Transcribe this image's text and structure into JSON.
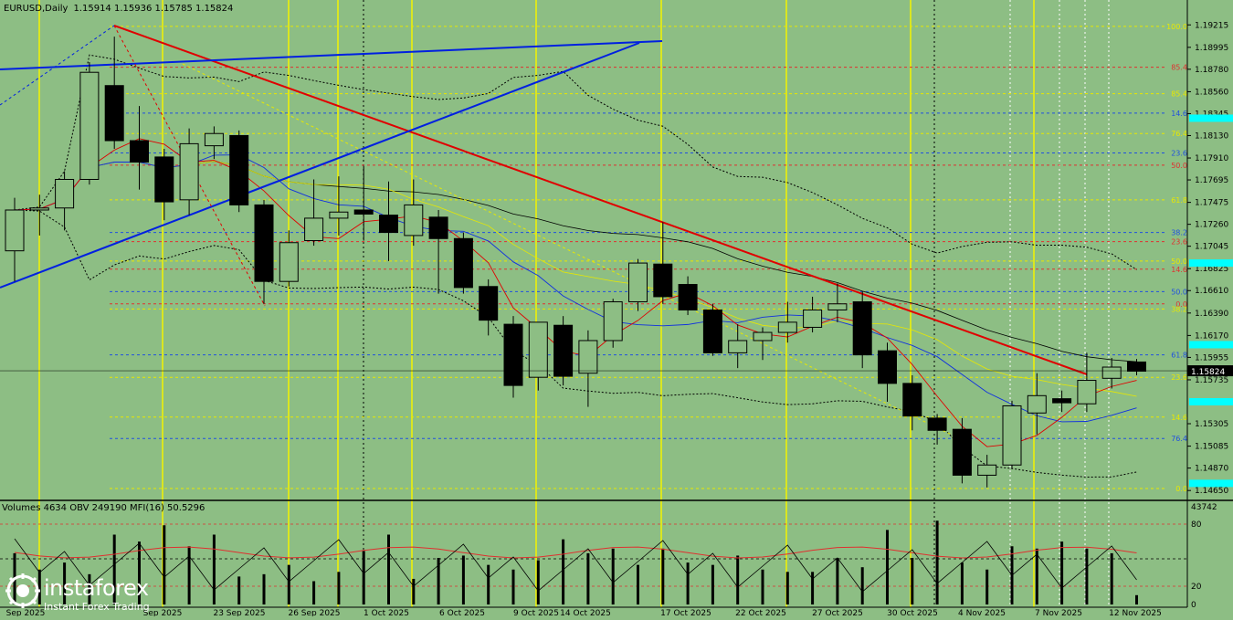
{
  "header": {
    "symbol": "EURUSD,Daily",
    "ohlc": "1.15914 1.15936 1.15785 1.15824"
  },
  "price_axis": {
    "labels": [
      "1.19215",
      "1.18995",
      "1.18780",
      "1.18560",
      "1.18345",
      "1.18130",
      "1.17910",
      "1.17695",
      "1.17475",
      "1.17260",
      "1.17045",
      "1.16825",
      "1.16610",
      "1.16390",
      "1.16170",
      "1.15955",
      "1.15735",
      "1.15305",
      "1.15085",
      "1.14870",
      "1.14650"
    ],
    "current_price": "1.15824"
  },
  "fib_labels": [
    {
      "text": "100.0",
      "price": 1.192,
      "color": "#e8e800"
    },
    {
      "text": "85.4",
      "price": 1.188,
      "color": "#e03030"
    },
    {
      "text": "85.4",
      "price": 1.1854,
      "color": "#e8e800"
    },
    {
      "text": "14.6",
      "price": 1.1835,
      "color": "#2050e0"
    },
    {
      "text": "76.4",
      "price": 1.1815,
      "color": "#e8e800"
    },
    {
      "text": "23.6",
      "price": 1.1796,
      "color": "#2050e0"
    },
    {
      "text": "50.0",
      "price": 1.1784,
      "color": "#e03030"
    },
    {
      "text": "61.8",
      "price": 1.175,
      "color": "#e8e800"
    },
    {
      "text": "38.2",
      "price": 1.1718,
      "color": "#2050e0"
    },
    {
      "text": "23.6",
      "price": 1.1709,
      "color": "#e03030"
    },
    {
      "text": "50.0",
      "price": 1.169,
      "color": "#e8e800"
    },
    {
      "text": "14.6",
      "price": 1.1682,
      "color": "#e03030"
    },
    {
      "text": "50.0",
      "price": 1.166,
      "color": "#2050e0"
    },
    {
      "text": "0.0",
      "price": 1.1648,
      "color": "#e03030"
    },
    {
      "text": "38.2",
      "price": 1.1643,
      "color": "#e8e800"
    },
    {
      "text": "61.8",
      "price": 1.1598,
      "color": "#2050e0"
    },
    {
      "text": "23.6",
      "price": 1.1576,
      "color": "#e8e800"
    },
    {
      "text": "14.6",
      "price": 1.1537,
      "color": "#e8e800"
    },
    {
      "text": "76.4",
      "price": 1.1516,
      "color": "#2050e0"
    },
    {
      "text": "0.0",
      "price": 1.1467,
      "color": "#e8e800"
    }
  ],
  "indicator": {
    "title": "Volumes 4634  OBV 249190  MFI(16) 50.5296",
    "axis_labels": [
      "43742",
      "80",
      "20",
      "0"
    ]
  },
  "time_axis": {
    "labels": [
      "Sep 2025",
      "Sep 2025",
      "23 Sep 2025",
      "26 Sep 2025",
      "1 Oct 2025",
      "6 Oct 2025",
      "9 Oct 2025",
      "14 Oct 2025",
      "17 Oct 2025",
      "22 Oct 2025",
      "27 Oct 2025",
      "30 Oct 2025",
      "4 Nov 2025",
      "7 Nov 2025",
      "12 Nov 2025"
    ]
  },
  "watermark": {
    "brand": "instaforex",
    "tagline": "Instant Forex Trading"
  },
  "colors": {
    "background": "#8dbe84",
    "bull_candle": "#8dbe84",
    "bear_candle": "#000000",
    "trend_red": "#e00000",
    "trend_blue": "#0020e0",
    "highlight_cyan": "#00ffff"
  },
  "chart_data": {
    "type": "candlestick",
    "title": "EURUSD,Daily",
    "y_range": [
      1.1458,
      1.1928
    ],
    "candles": [
      {
        "o": 1.17,
        "h": 1.1752,
        "l": 1.167,
        "c": 1.174
      },
      {
        "o": 1.174,
        "h": 1.1755,
        "l": 1.1715,
        "c": 1.1742
      },
      {
        "o": 1.1742,
        "h": 1.1778,
        "l": 1.172,
        "c": 1.177
      },
      {
        "o": 1.177,
        "h": 1.1885,
        "l": 1.1765,
        "c": 1.1875
      },
      {
        "o": 1.1862,
        "h": 1.191,
        "l": 1.18,
        "c": 1.1808
      },
      {
        "o": 1.1808,
        "h": 1.1842,
        "l": 1.176,
        "c": 1.1787
      },
      {
        "o": 1.1792,
        "h": 1.18,
        "l": 1.173,
        "c": 1.1748
      },
      {
        "o": 1.175,
        "h": 1.182,
        "l": 1.1735,
        "c": 1.1805
      },
      {
        "o": 1.1803,
        "h": 1.1822,
        "l": 1.179,
        "c": 1.1815
      },
      {
        "o": 1.1813,
        "h": 1.1818,
        "l": 1.1738,
        "c": 1.1745
      },
      {
        "o": 1.1745,
        "h": 1.175,
        "l": 1.1648,
        "c": 1.167
      },
      {
        "o": 1.167,
        "h": 1.172,
        "l": 1.1665,
        "c": 1.1708
      },
      {
        "o": 1.171,
        "h": 1.177,
        "l": 1.1705,
        "c": 1.1732
      },
      {
        "o": 1.1732,
        "h": 1.1773,
        "l": 1.1715,
        "c": 1.1738
      },
      {
        "o": 1.174,
        "h": 1.1783,
        "l": 1.171,
        "c": 1.1736
      },
      {
        "o": 1.1735,
        "h": 1.1768,
        "l": 1.169,
        "c": 1.1718
      },
      {
        "o": 1.1715,
        "h": 1.177,
        "l": 1.1705,
        "c": 1.1745
      },
      {
        "o": 1.1733,
        "h": 1.174,
        "l": 1.1658,
        "c": 1.1712
      },
      {
        "o": 1.1712,
        "h": 1.1718,
        "l": 1.1658,
        "c": 1.1664
      },
      {
        "o": 1.1665,
        "h": 1.1672,
        "l": 1.1617,
        "c": 1.1632
      },
      {
        "o": 1.1628,
        "h": 1.1636,
        "l": 1.1556,
        "c": 1.1568
      },
      {
        "o": 1.1576,
        "h": 1.163,
        "l": 1.1563,
        "c": 1.163
      },
      {
        "o": 1.1627,
        "h": 1.1636,
        "l": 1.1568,
        "c": 1.1577
      },
      {
        "o": 1.158,
        "h": 1.1622,
        "l": 1.1547,
        "c": 1.1612
      },
      {
        "o": 1.1612,
        "h": 1.1653,
        "l": 1.1605,
        "c": 1.165
      },
      {
        "o": 1.165,
        "h": 1.1692,
        "l": 1.1641,
        "c": 1.1688
      },
      {
        "o": 1.1687,
        "h": 1.1728,
        "l": 1.1648,
        "c": 1.1655
      },
      {
        "o": 1.1667,
        "h": 1.1675,
        "l": 1.1637,
        "c": 1.1642
      },
      {
        "o": 1.1642,
        "h": 1.1648,
        "l": 1.1597,
        "c": 1.16
      },
      {
        "o": 1.16,
        "h": 1.1628,
        "l": 1.1585,
        "c": 1.1612
      },
      {
        "o": 1.1612,
        "h": 1.1625,
        "l": 1.1593,
        "c": 1.162
      },
      {
        "o": 1.162,
        "h": 1.165,
        "l": 1.161,
        "c": 1.163
      },
      {
        "o": 1.1625,
        "h": 1.1655,
        "l": 1.162,
        "c": 1.1642
      },
      {
        "o": 1.1642,
        "h": 1.1668,
        "l": 1.163,
        "c": 1.1648
      },
      {
        "o": 1.165,
        "h": 1.166,
        "l": 1.1585,
        "c": 1.1598
      },
      {
        "o": 1.1602,
        "h": 1.161,
        "l": 1.1552,
        "c": 1.157
      },
      {
        "o": 1.157,
        "h": 1.1578,
        "l": 1.1524,
        "c": 1.1538
      },
      {
        "o": 1.1536,
        "h": 1.154,
        "l": 1.151,
        "c": 1.1524
      },
      {
        "o": 1.1525,
        "h": 1.1536,
        "l": 1.1472,
        "c": 1.148
      },
      {
        "o": 1.148,
        "h": 1.15,
        "l": 1.1468,
        "c": 1.149
      },
      {
        "o": 1.149,
        "h": 1.1553,
        "l": 1.1486,
        "c": 1.1548
      },
      {
        "o": 1.1541,
        "h": 1.158,
        "l": 1.152,
        "c": 1.1558
      },
      {
        "o": 1.1555,
        "h": 1.1563,
        "l": 1.1542,
        "c": 1.1551
      },
      {
        "o": 1.155,
        "h": 1.16,
        "l": 1.1542,
        "c": 1.1573
      },
      {
        "o": 1.1575,
        "h": 1.1595,
        "l": 1.1565,
        "c": 1.1586
      },
      {
        "o": 1.1591,
        "h": 1.1594,
        "l": 1.1578,
        "c": 1.1582
      }
    ],
    "volumes": [
      22,
      15,
      18,
      13,
      30,
      27,
      34,
      25,
      30,
      12,
      13,
      17,
      10,
      14,
      23,
      30,
      11,
      20,
      21,
      17,
      15,
      19,
      28,
      22,
      24,
      17,
      24,
      18,
      17,
      21,
      15,
      14,
      14,
      20,
      16,
      32,
      20,
      36,
      18,
      15,
      25,
      24,
      27,
      24,
      22,
      4
    ]
  }
}
